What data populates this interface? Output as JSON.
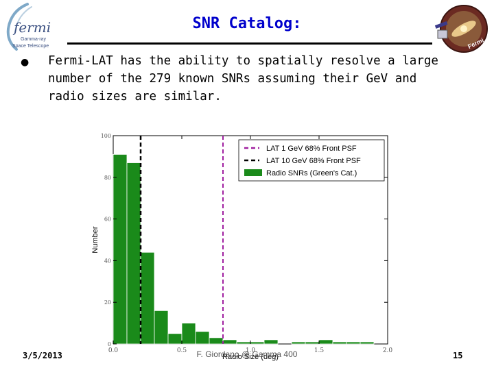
{
  "slide": {
    "title": "SNR Catalog:",
    "bullet": "Fermi-LAT has the ability to spatially resolve a large number of the 279 known SNRs assuming their GeV and radio sizes are similar.",
    "footer": {
      "date": "3/5/2013",
      "author": "F. Giordano @ Gamma 400",
      "page": "15"
    },
    "logo_left": {
      "wordmark": "fermi",
      "line1": "Gamma-ray",
      "line2": "Space Telescope"
    },
    "logo_right": {
      "text": "Fermi"
    }
  },
  "chart_data": {
    "type": "bar",
    "xlabel": "Radio Size (deg)",
    "ylabel": "Number",
    "xlim": [
      0.0,
      2.0
    ],
    "ylim": [
      0,
      100
    ],
    "xticks": [
      {
        "value": 0.0,
        "label": "0.0"
      },
      {
        "value": 0.5,
        "label": "0.5"
      },
      {
        "value": 1.0,
        "label": "1.0"
      },
      {
        "value": 1.5,
        "label": "1.5"
      },
      {
        "value": 2.0,
        "label": "2.0"
      }
    ],
    "yticks": [
      {
        "value": 0,
        "label": "0"
      },
      {
        "value": 20,
        "label": "20"
      },
      {
        "value": 40,
        "label": "40"
      },
      {
        "value": 60,
        "label": "60"
      },
      {
        "value": 80,
        "label": "80"
      },
      {
        "value": 100,
        "label": "100"
      }
    ],
    "bin_width": 0.1,
    "bins": [
      {
        "x0": 0.0,
        "count": 91
      },
      {
        "x0": 0.1,
        "count": 87
      },
      {
        "x0": 0.2,
        "count": 44
      },
      {
        "x0": 0.3,
        "count": 16
      },
      {
        "x0": 0.4,
        "count": 5
      },
      {
        "x0": 0.5,
        "count": 10
      },
      {
        "x0": 0.6,
        "count": 6
      },
      {
        "x0": 0.7,
        "count": 3
      },
      {
        "x0": 0.8,
        "count": 2
      },
      {
        "x0": 0.9,
        "count": 1
      },
      {
        "x0": 1.0,
        "count": 1
      },
      {
        "x0": 1.1,
        "count": 2
      },
      {
        "x0": 1.2,
        "count": 0
      },
      {
        "x0": 1.3,
        "count": 1
      },
      {
        "x0": 1.4,
        "count": 1
      },
      {
        "x0": 1.5,
        "count": 2
      },
      {
        "x0": 1.6,
        "count": 1
      },
      {
        "x0": 1.7,
        "count": 1
      },
      {
        "x0": 1.8,
        "count": 1
      },
      {
        "x0": 1.9,
        "count": 0
      }
    ],
    "vlines": [
      {
        "name": "LAT 1 GeV 68% Front PSF",
        "x": 0.8,
        "color": "#a020a0"
      },
      {
        "name": "LAT 10 GeV 68% Front PSF",
        "x": 0.2,
        "color": "#000000"
      }
    ],
    "series": [
      {
        "name": "Radio SNRs (Green's Cat.)",
        "color": "#1a8a1a"
      }
    ],
    "legend": "top-right"
  }
}
